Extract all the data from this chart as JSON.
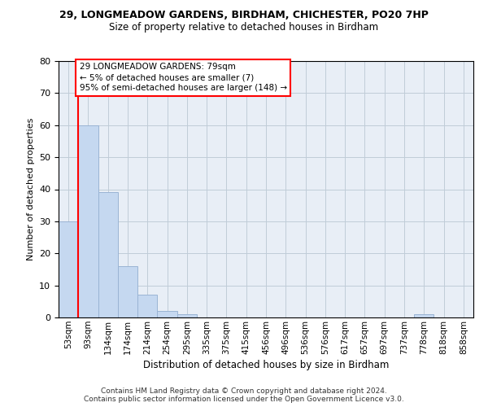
{
  "title1": "29, LONGMEADOW GARDENS, BIRDHAM, CHICHESTER, PO20 7HP",
  "title2": "Size of property relative to detached houses in Birdham",
  "xlabel": "Distribution of detached houses by size in Birdham",
  "ylabel": "Number of detached properties",
  "categories": [
    "53sqm",
    "93sqm",
    "134sqm",
    "174sqm",
    "214sqm",
    "254sqm",
    "295sqm",
    "335sqm",
    "375sqm",
    "415sqm",
    "456sqm",
    "496sqm",
    "536sqm",
    "576sqm",
    "617sqm",
    "657sqm",
    "697sqm",
    "737sqm",
    "778sqm",
    "818sqm",
    "858sqm"
  ],
  "values": [
    30,
    60,
    39,
    16,
    7,
    2,
    1,
    0,
    0,
    0,
    0,
    0,
    0,
    0,
    0,
    0,
    0,
    0,
    1,
    0,
    0
  ],
  "bar_color": "#c5d8f0",
  "bar_edge_color": "#9ab4d4",
  "grid_color": "#c0ccd8",
  "background_color": "#e8eef6",
  "annotation_line1": "29 LONGMEADOW GARDENS: 79sqm",
  "annotation_line2": "← 5% of detached houses are smaller (7)",
  "annotation_line3": "95% of semi-detached houses are larger (148) →",
  "red_line_x": 0.5,
  "ylim_max": 80,
  "yticks": [
    0,
    10,
    20,
    30,
    40,
    50,
    60,
    70,
    80
  ],
  "footer1": "Contains HM Land Registry data © Crown copyright and database right 2024.",
  "footer2": "Contains public sector information licensed under the Open Government Licence v3.0."
}
